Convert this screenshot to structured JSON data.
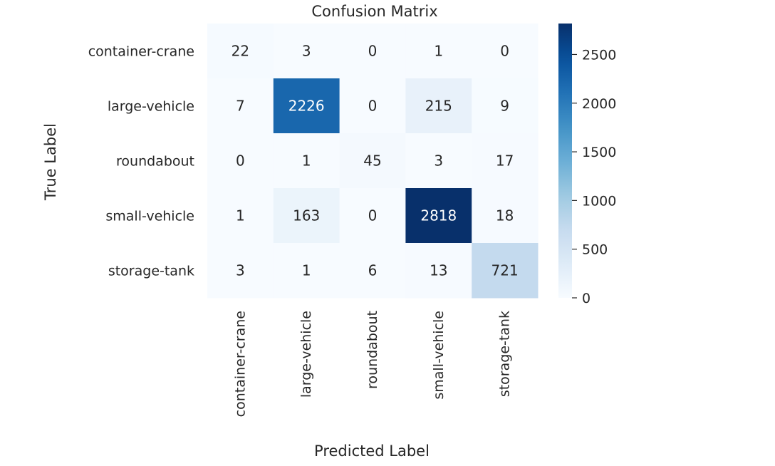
{
  "chart_data": {
    "type": "heatmap",
    "title": "Confusion Matrix",
    "xlabel": "Predicted Label",
    "ylabel": "True Label",
    "x_categories": [
      "container-crane",
      "large-vehicle",
      "roundabout",
      "small-vehicle",
      "storage-tank"
    ],
    "y_categories": [
      "container-crane",
      "large-vehicle",
      "roundabout",
      "small-vehicle",
      "storage-tank"
    ],
    "values": [
      [
        22,
        3,
        0,
        1,
        0
      ],
      [
        7,
        2226,
        0,
        215,
        9
      ],
      [
        0,
        1,
        45,
        3,
        17
      ],
      [
        1,
        163,
        0,
        2818,
        18
      ],
      [
        3,
        1,
        6,
        13,
        721
      ]
    ],
    "colormap": "Blues",
    "vmin": 0,
    "vmax": 2818,
    "colorbar_ticks": [
      0,
      500,
      1000,
      1500,
      2000,
      2500
    ],
    "grid": false
  }
}
